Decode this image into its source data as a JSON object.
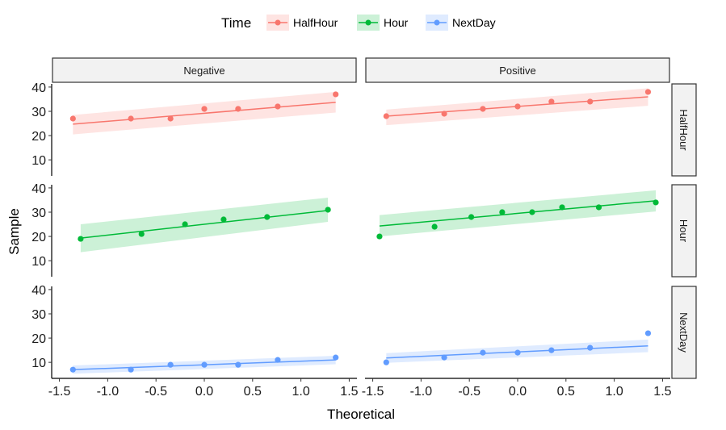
{
  "chart_data": {
    "type": "scatter",
    "xlabel": "Theoretical",
    "ylabel": "Sample",
    "xlim": [
      -1.58,
      1.58
    ],
    "ylim": [
      3.4,
      41.3
    ],
    "xticks": [
      "-1.5",
      "-1.0",
      "-0.5",
      "0.0",
      "0.5",
      "1.0",
      "1.5"
    ],
    "xtick_values": [
      -1.5,
      -1.0,
      -0.5,
      0.0,
      0.5,
      1.0,
      1.5
    ],
    "yticks": [
      "10",
      "20",
      "30",
      "40"
    ],
    "ytick_values": [
      10,
      20,
      30,
      40
    ],
    "grid": false,
    "legend": {
      "title": "Time",
      "position": "top",
      "entries": [
        "HalfHour",
        "Hour",
        "NextDay"
      ]
    },
    "colors": {
      "HalfHour": "#F8766D",
      "Hour": "#00BA38",
      "NextDay": "#619CFF"
    },
    "columns": [
      "Negative",
      "Positive"
    ],
    "rows": [
      "HalfHour",
      "Hour",
      "NextDay"
    ],
    "panels": [
      {
        "row": "HalfHour",
        "col": "Negative",
        "x": [
          -1.36,
          -0.76,
          -0.35,
          0,
          0.35,
          0.76,
          1.36
        ],
        "y": [
          27,
          27,
          27,
          31,
          31,
          32,
          37
        ],
        "line": [
          [
            -1.36,
            24.7
          ],
          [
            1.36,
            33.7
          ]
        ],
        "band_lower": [
          20.5,
          29.5
        ],
        "band_upper": [
          28.5,
          38
        ]
      },
      {
        "row": "HalfHour",
        "col": "Positive",
        "x": [
          -1.36,
          -0.76,
          -0.36,
          0,
          0.35,
          0.75,
          1.35
        ],
        "y": [
          28,
          29,
          31,
          32,
          34,
          34,
          38
        ],
        "line": [
          [
            -1.36,
            28
          ],
          [
            1.35,
            36
          ]
        ],
        "band_lower": [
          24.3,
          32.3
        ],
        "band_upper": [
          30.7,
          39.5
        ]
      },
      {
        "row": "Hour",
        "col": "Negative",
        "x": [
          -1.28,
          -0.65,
          -0.2,
          0.2,
          0.65,
          1.28
        ],
        "y": [
          19,
          21,
          25,
          27,
          28,
          31
        ],
        "line": [
          [
            -1.28,
            19.3
          ],
          [
            1.28,
            30.7
          ]
        ],
        "band_lower": [
          13.5,
          26
        ],
        "band_upper": [
          25,
          36
        ]
      },
      {
        "row": "Hour",
        "col": "Positive",
        "x": [
          -1.43,
          -0.86,
          -0.48,
          -0.16,
          0.15,
          0.46,
          0.84,
          1.43
        ],
        "y": [
          20,
          24,
          28,
          30,
          30,
          32,
          32,
          34
        ],
        "line": [
          [
            -1.43,
            24.3
          ],
          [
            1.43,
            34.7
          ]
        ],
        "band_lower": [
          20,
          30.3
        ],
        "band_upper": [
          28.8,
          39
        ]
      },
      {
        "row": "NextDay",
        "col": "Negative",
        "x": [
          -1.36,
          -0.76,
          -0.35,
          0,
          0.35,
          0.76,
          1.36
        ],
        "y": [
          7,
          7,
          9,
          9,
          9,
          11,
          12
        ],
        "line": [
          [
            -1.36,
            7
          ],
          [
            1.36,
            11
          ]
        ],
        "band_lower": [
          5.3,
          9.2
        ],
        "band_upper": [
          8.7,
          12.7
        ]
      },
      {
        "row": "NextDay",
        "col": "Positive",
        "x": [
          -1.36,
          -0.76,
          -0.36,
          0,
          0.35,
          0.75,
          1.35
        ],
        "y": [
          10,
          12,
          14,
          14,
          15,
          16,
          22
        ],
        "line": [
          [
            -1.36,
            11.8
          ],
          [
            1.35,
            16.8
          ]
        ],
        "band_lower": [
          9.8,
          14.2
        ],
        "band_upper": [
          13.8,
          19.4
        ]
      }
    ]
  }
}
